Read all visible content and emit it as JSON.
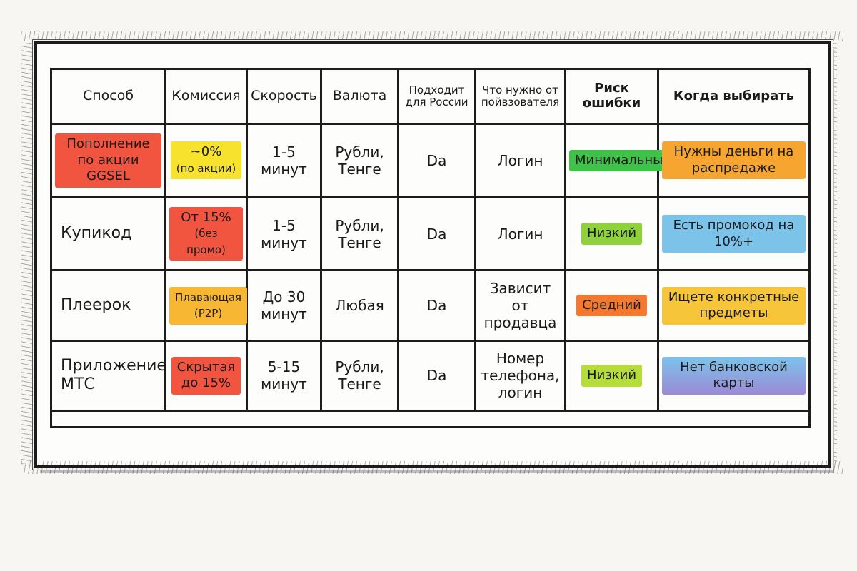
{
  "table": {
    "headers": [
      {
        "text": "Способ",
        "style": "normal"
      },
      {
        "text": "Комиссия",
        "style": "normal"
      },
      {
        "text": "Скорость",
        "style": "normal"
      },
      {
        "text": "Валюта",
        "style": "normal"
      },
      {
        "text": "Подходит для России",
        "style": "small"
      },
      {
        "text": "Что нужно от пойвзователя",
        "style": "small"
      },
      {
        "text": "Риск ошибки",
        "style": "bold"
      },
      {
        "text": "Когда выбирать",
        "style": "bold"
      }
    ],
    "rows": [
      {
        "method": "Пополнение по акции GGSEL",
        "commission": "~0%",
        "commission_note": "(по акции)",
        "speed": "1-5 минут",
        "currency": "Рубли, Тенге",
        "russia": "Da",
        "requirement": "Логин",
        "risk": "Минимальный",
        "when": "Нужны деньги на распредаже"
      },
      {
        "method": "Купикод",
        "commission": "От 15%",
        "commission_note": "(без промо)",
        "speed": "1-5 минут",
        "currency": "Рубли, Тенге",
        "russia": "Da",
        "requirement": "Логин",
        "risk": "Низкий",
        "when": "Есть промокод на 10%+"
      },
      {
        "method": "Плеерок",
        "commission": "Плавающая",
        "commission_note": "(P2P)",
        "speed": "До 30 минут",
        "currency": "Любая",
        "russia": "Da",
        "requirement": "Зависит от продавца",
        "risk": "Средний",
        "when": "Ищете конкретные предметы"
      },
      {
        "method": "Приложение МТС",
        "commission": "Скрытая",
        "commission_note": "до 15%",
        "speed": "5-15 минут",
        "currency": "Рубли, Тенге",
        "russia": "Da",
        "requirement": "Номер телефона, логин",
        "risk": "Низкий",
        "when": "Нет банковской карты"
      }
    ]
  },
  "colors": {
    "red_marker": "#f2553f",
    "yellow_marker": "#f7e22e",
    "orange_marker": "#f7a531",
    "green_marker": "#8fd13a",
    "blue_marker": "#7cc3ea",
    "purple_marker": "#9b8ad6"
  }
}
